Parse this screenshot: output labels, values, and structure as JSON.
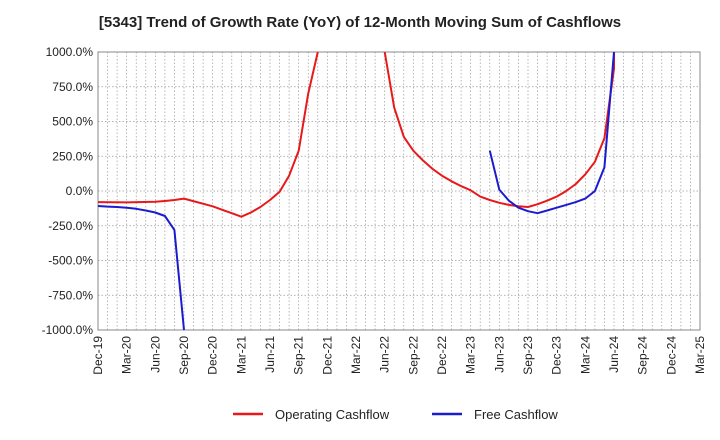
{
  "chart_data": {
    "type": "line",
    "title": "[5343]  Trend of Growth Rate (YoY) of 12-Month Moving Sum of Cashflows",
    "xlabel": "",
    "ylabel": "",
    "ylim": [
      -1000,
      1000
    ],
    "y_ticks": [
      1000,
      750,
      500,
      250,
      0,
      -250,
      -500,
      -750,
      -1000
    ],
    "y_tick_labels": [
      "1000.0%",
      "750.0%",
      "500.0%",
      "250.0%",
      "0.0%",
      "-250.0%",
      "-500.0%",
      "-750.0%",
      "-1000.0%"
    ],
    "x_tick_labels": [
      "Dec-19",
      "Mar-20",
      "Jun-20",
      "Sep-20",
      "Dec-20",
      "Mar-21",
      "Jun-21",
      "Sep-21",
      "Dec-21",
      "Mar-22",
      "Jun-22",
      "Sep-22",
      "Dec-22",
      "Mar-23",
      "Jun-23",
      "Sep-23",
      "Dec-23",
      "Mar-24",
      "Jun-24",
      "Sep-24",
      "Dec-24",
      "Mar-25"
    ],
    "grid": true,
    "legend_position": "bottom",
    "series": [
      {
        "name": "Operating Cashflow",
        "color": "#e8191a",
        "points": [
          [
            "Dec-19",
            -80
          ],
          [
            "Mar-20",
            -82
          ],
          [
            "Jun-20",
            -78
          ],
          [
            "Jul-20",
            -72
          ],
          [
            "Aug-20",
            -65
          ],
          [
            "Sep-20",
            -55
          ],
          [
            "Dec-20",
            -110
          ],
          [
            "Jan-21",
            -135
          ],
          [
            "Feb-21",
            -160
          ],
          [
            "Mar-21",
            -185
          ],
          [
            "Apr-21",
            -155
          ],
          [
            "May-21",
            -115
          ],
          [
            "Jun-21",
            -65
          ],
          [
            "Jul-21",
            -5
          ],
          [
            "Aug-21",
            110
          ],
          [
            "Sep-21",
            290
          ],
          [
            "Oct-21",
            700
          ],
          [
            "Nov-21",
            1000
          ],
          [
            "Jun-22",
            1000
          ],
          [
            "Jul-22",
            600
          ],
          [
            "Aug-22",
            390
          ],
          [
            "Sep-22",
            290
          ],
          [
            "Oct-22",
            220
          ],
          [
            "Nov-22",
            160
          ],
          [
            "Dec-22",
            110
          ],
          [
            "Jan-23",
            70
          ],
          [
            "Feb-23",
            35
          ],
          [
            "Mar-23",
            5
          ],
          [
            "Apr-23",
            -40
          ],
          [
            "May-23",
            -65
          ],
          [
            "Jun-23",
            -85
          ],
          [
            "Jul-23",
            -100
          ],
          [
            "Aug-23",
            -110
          ],
          [
            "Sep-23",
            -115
          ],
          [
            "Oct-23",
            -95
          ],
          [
            "Nov-23",
            -70
          ],
          [
            "Dec-23",
            -40
          ],
          [
            "Jan-24",
            0
          ],
          [
            "Feb-24",
            50
          ],
          [
            "Mar-24",
            120
          ],
          [
            "Apr-24",
            210
          ],
          [
            "May-24",
            380
          ],
          [
            "Jun-24",
            880
          ],
          [
            "Jun-24",
            1000
          ]
        ]
      },
      {
        "name": "Free Cashflow",
        "color": "#1c1ccf",
        "points": [
          [
            "Dec-19",
            -108
          ],
          [
            "Jan-20",
            -112
          ],
          [
            "Feb-20",
            -115
          ],
          [
            "Mar-20",
            -120
          ],
          [
            "Apr-20",
            -128
          ],
          [
            "May-20",
            -140
          ],
          [
            "Jun-20",
            -155
          ],
          [
            "Jul-20",
            -180
          ],
          [
            "Aug-20",
            -280
          ],
          [
            "Sep-20",
            -1000
          ],
          [
            "May-23",
            290
          ],
          [
            "Jun-23",
            10
          ],
          [
            "Jul-23",
            -70
          ],
          [
            "Aug-23",
            -120
          ],
          [
            "Sep-23",
            -145
          ],
          [
            "Oct-23",
            -160
          ],
          [
            "Nov-23",
            -140
          ],
          [
            "Dec-23",
            -120
          ],
          [
            "Jan-24",
            -100
          ],
          [
            "Feb-24",
            -80
          ],
          [
            "Mar-24",
            -55
          ],
          [
            "Apr-24",
            0
          ],
          [
            "May-24",
            170
          ],
          [
            "Jun-24",
            1000
          ]
        ]
      }
    ]
  }
}
